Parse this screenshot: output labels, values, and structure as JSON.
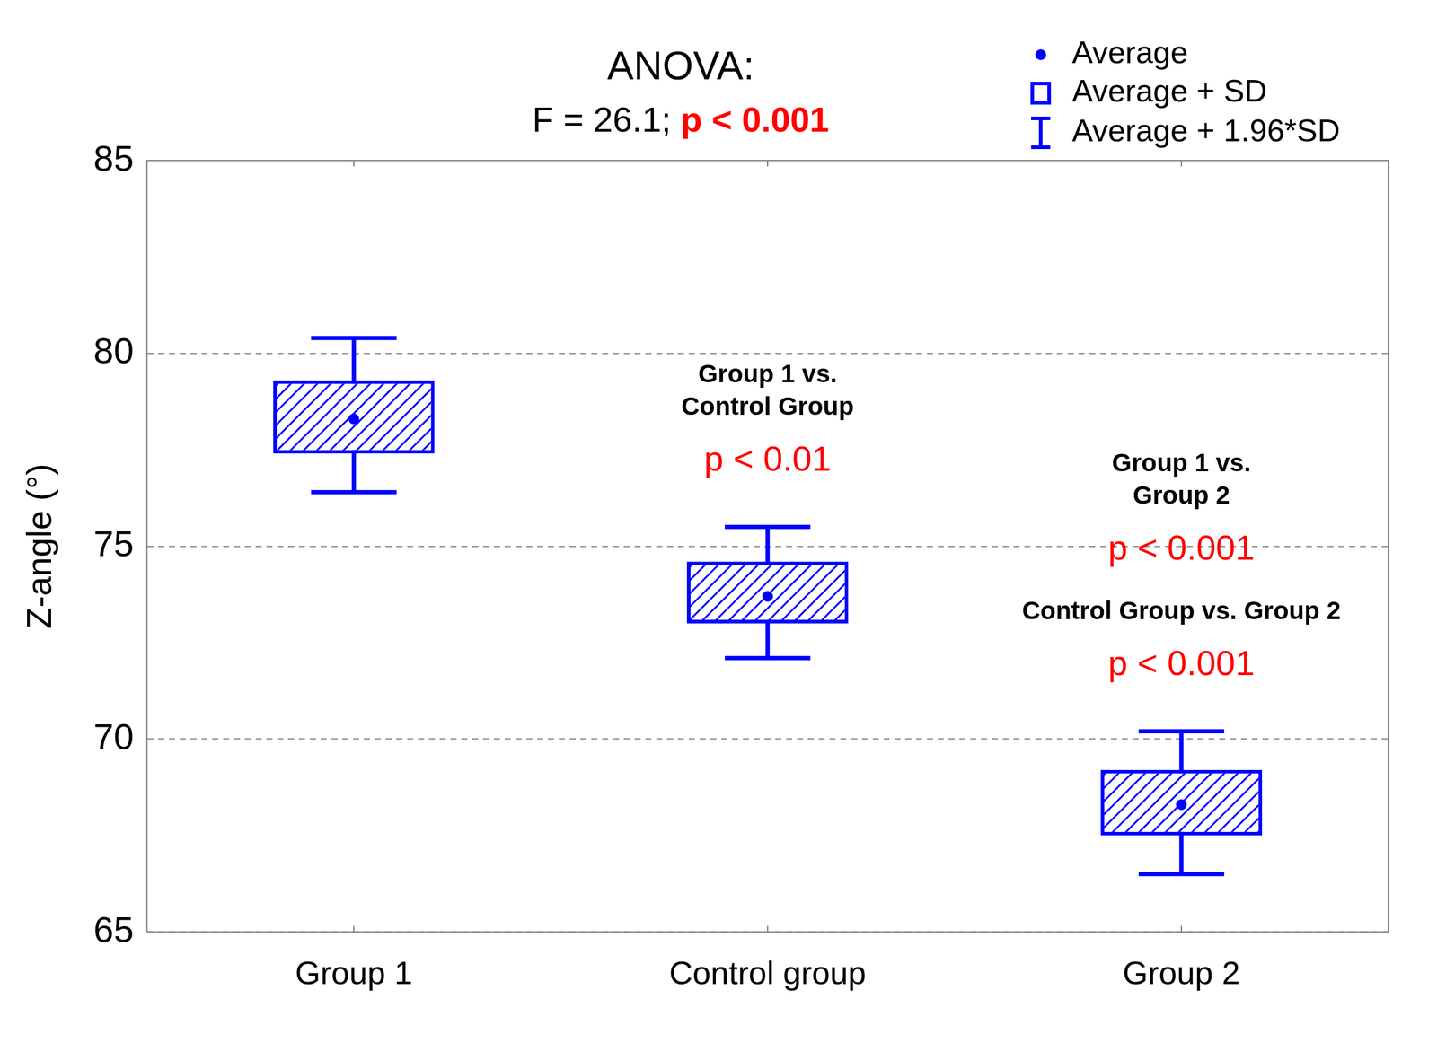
{
  "chart_data": {
    "type": "box",
    "title": "ANOVA:",
    "subtitle": [
      {
        "text": "F = 26.1;"
      },
      {
        "text": "p < 0.001",
        "color": "#ff0000"
      }
    ],
    "y_label": "Z-angle (°)",
    "categories": [
      "Group 1",
      "Control group",
      "Group 2"
    ],
    "series": [
      {
        "name": "Average",
        "type": "point",
        "marker": "circle",
        "color": "#0000ff",
        "values": [
          78.3,
          73.7,
          68.3
        ]
      },
      {
        "name": "Average + SD",
        "type": "box",
        "color": "#0000ff",
        "values": [
          [
            77.4,
            79.3
          ],
          [
            73.0,
            74.6
          ],
          [
            67.5,
            69.2
          ]
        ]
      },
      {
        "name": "Average + 1.96*SD",
        "type": "whisker",
        "color": "#0000ff",
        "values": [
          [
            76.4,
            80.4
          ],
          [
            72.1,
            75.5
          ],
          [
            66.5,
            70.2
          ]
        ]
      }
    ],
    "ylim": [
      65,
      85
    ],
    "yticks": [
      65,
      70,
      75,
      80,
      85
    ],
    "grid": true,
    "legend": "top right",
    "annotations": [
      {
        "category": "Control group",
        "lines": [
          "Group 1 vs.",
          "Control Group"
        ],
        "p": "p < 0.01",
        "color": "#ff0000"
      },
      {
        "category": "Group 2",
        "lines": [
          "Group 1 vs.",
          "Group 2"
        ],
        "p": "p < 0.001",
        "color": "#ff0000"
      },
      {
        "category": "Group 2",
        "lines": [
          "Control Group vs. Group 2"
        ],
        "p": "p < 0.001",
        "color": "#ff0000"
      }
    ]
  }
}
